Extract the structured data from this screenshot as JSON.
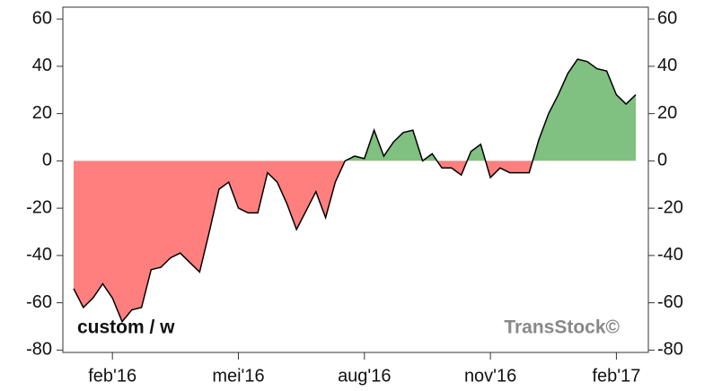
{
  "chart_data": {
    "type": "area",
    "annotations": [
      "custom / w",
      "TransStock©"
    ],
    "categories": [
      null,
      null,
      null,
      null,
      "feb'16",
      null,
      null,
      null,
      null,
      null,
      null,
      null,
      null,
      null,
      null,
      null,
      null,
      "mei'16",
      null,
      null,
      null,
      null,
      null,
      null,
      null,
      null,
      null,
      null,
      null,
      null,
      "aug'16",
      null,
      null,
      null,
      null,
      null,
      null,
      null,
      null,
      null,
      null,
      null,
      null,
      "nov'16",
      null,
      null,
      null,
      null,
      null,
      null,
      null,
      null,
      null,
      null,
      null,
      null,
      "feb'17",
      null,
      null
    ],
    "values": [
      -54,
      -62,
      -58,
      -52,
      -58,
      -68,
      -63,
      -62,
      -46,
      -45,
      -41,
      -39,
      -43,
      -47,
      -30,
      -12,
      -9,
      -20,
      -22,
      -22,
      -5,
      -9,
      -18,
      -29,
      -21,
      -13,
      -24,
      -9,
      0,
      2,
      1,
      13,
      2,
      8,
      12,
      13,
      0,
      3,
      -3,
      -3,
      -6,
      4,
      7,
      -7,
      -3,
      -5,
      -5,
      -5,
      9,
      20,
      28,
      37,
      43,
      42,
      39,
      38,
      28,
      24,
      28
    ],
    "positive_color": "#80c080",
    "negative_color": "#ff7f7f",
    "line_color": "#000000",
    "ylim": [
      -81,
      65
    ],
    "yticks": [
      -80,
      -60,
      -40,
      -20,
      0,
      20,
      40,
      60
    ]
  }
}
